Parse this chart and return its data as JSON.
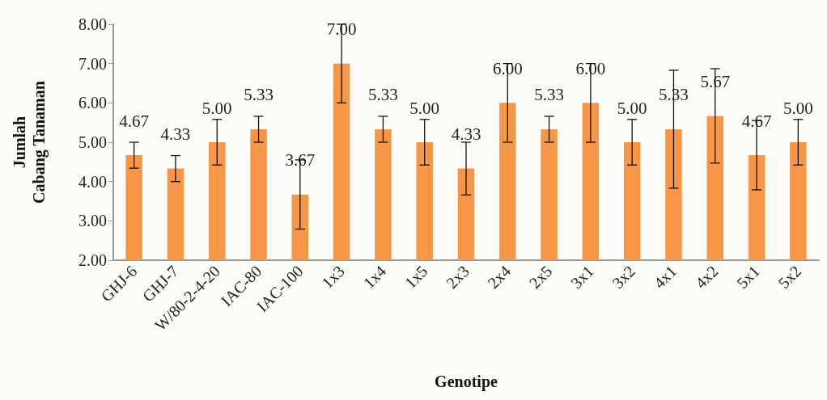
{
  "chart_data": {
    "type": "bar",
    "xlabel": "Genotipe",
    "ylabel": "Jumlah\nCabang Tanaman",
    "categories": [
      "GHJ-6",
      "GHJ-7",
      "W/80-2-4-20",
      "IAC-80",
      "IAC-100",
      "1x3",
      "1x4",
      "1x5",
      "2x3",
      "2x4",
      "2x5",
      "3x1",
      "3x2",
      "4x1",
      "4x2",
      "5x1",
      "5x2"
    ],
    "values": [
      4.67,
      4.33,
      5.0,
      5.33,
      3.67,
      7.0,
      5.33,
      5.0,
      4.33,
      6.0,
      5.33,
      6.0,
      5.0,
      5.33,
      5.67,
      4.67,
      5.0
    ],
    "value_labels": [
      "4.67",
      "4.33",
      "5.00",
      "5.33",
      "3.67",
      "7.00",
      "5.33",
      "5.00",
      "4.33",
      "6.00",
      "5.33",
      "6.00",
      "5.00",
      "5.33",
      "5.67",
      "4.67",
      "5.00"
    ],
    "errors": [
      0.33,
      0.33,
      0.58,
      0.33,
      0.88,
      1.0,
      0.33,
      0.58,
      0.67,
      1.0,
      0.33,
      1.0,
      0.58,
      1.5,
      1.2,
      0.88,
      0.58
    ],
    "color": "#f79646",
    "ylim": [
      2,
      8
    ],
    "yticks": [
      {
        "value": 2,
        "label": "2.00"
      },
      {
        "value": 3,
        "label": "3.00"
      },
      {
        "value": 4,
        "label": "4.00"
      },
      {
        "value": 5,
        "label": "5.00"
      },
      {
        "value": 6,
        "label": "6.00"
      },
      {
        "value": 7,
        "label": "7.00"
      },
      {
        "value": 8,
        "label": "8.00"
      }
    ],
    "grid": false
  }
}
